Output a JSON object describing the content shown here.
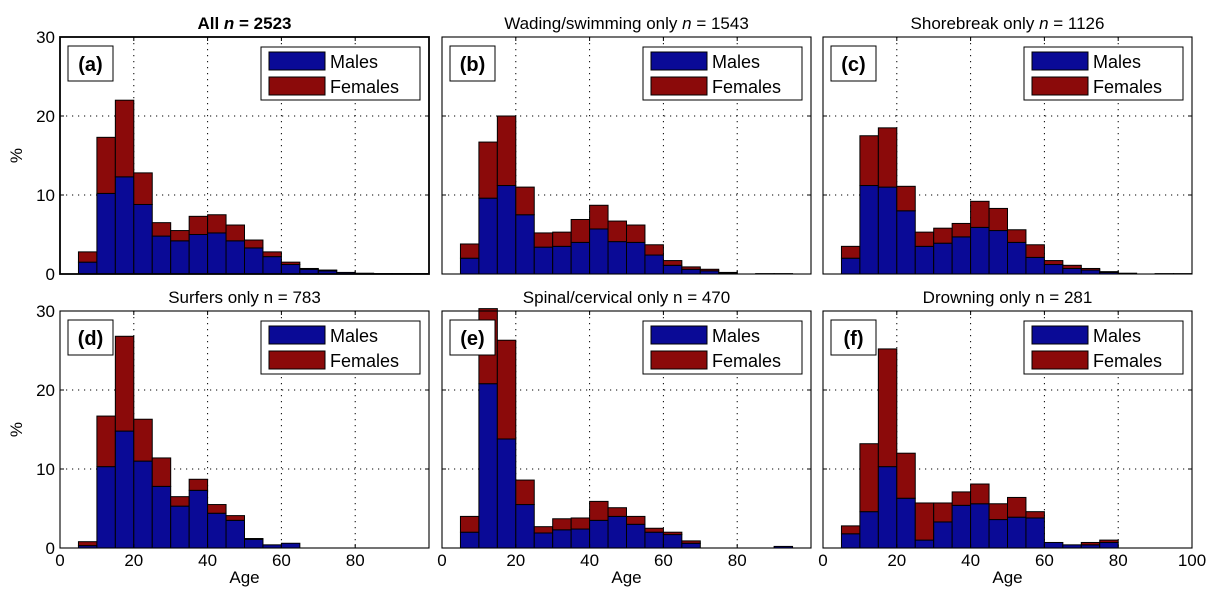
{
  "colors": {
    "males": "#0a0a96",
    "females": "#8b0a0a"
  },
  "legend": {
    "males": "Males",
    "females": "Females"
  },
  "chart_data": [
    {
      "type": "bar",
      "panel_label": "(a)",
      "title_parts": [
        {
          "text": "All ",
          "bold": true
        },
        {
          "text": "n",
          "bold": true,
          "italic": true
        },
        {
          "text": " = 2523",
          "bold": true
        }
      ],
      "xlabel": "",
      "ylabel": "%",
      "xlim": [
        0,
        100
      ],
      "ylim": [
        0,
        30
      ],
      "yticks": [
        "0",
        "10",
        "20",
        "30"
      ],
      "xticks": [],
      "bin_edges": [
        5,
        10,
        15,
        20,
        25,
        30,
        35,
        40,
        45,
        50,
        55,
        60,
        65,
        70,
        75,
        80,
        85,
        90,
        95,
        100
      ],
      "series": [
        {
          "name": "Males",
          "values": [
            1.5,
            10.2,
            12.3,
            8.8,
            4.8,
            4.2,
            5.0,
            5.2,
            4.2,
            3.3,
            2.2,
            1.2,
            0.6,
            0.4,
            0.2,
            0.1,
            0.05,
            0.05,
            0.05
          ]
        },
        {
          "name": "Females",
          "values": [
            1.3,
            7.1,
            9.7,
            4.0,
            1.7,
            1.3,
            2.3,
            2.3,
            2.0,
            1.0,
            0.6,
            0.3,
            0.1,
            0.1,
            0.0,
            0.0,
            0.0,
            0.0,
            0.0
          ]
        }
      ]
    },
    {
      "type": "bar",
      "panel_label": "(b)",
      "title_parts": [
        {
          "text": "Wading/swimming only "
        },
        {
          "text": "n",
          "italic": true
        },
        {
          "text": " = 1543"
        }
      ],
      "xlabel": "",
      "ylabel": "",
      "xlim": [
        0,
        100
      ],
      "ylim": [
        0,
        30
      ],
      "yticks": [],
      "xticks": [],
      "bin_edges": [
        5,
        10,
        15,
        20,
        25,
        30,
        35,
        40,
        45,
        50,
        55,
        60,
        65,
        70,
        75,
        80,
        85,
        90,
        95,
        100
      ],
      "series": [
        {
          "name": "Males",
          "values": [
            2.0,
            9.6,
            11.2,
            7.5,
            3.4,
            3.5,
            4.0,
            5.7,
            4.1,
            4.0,
            2.4,
            1.1,
            0.6,
            0.4,
            0.1,
            0.0,
            0.05,
            0.05,
            0.0
          ]
        },
        {
          "name": "Females",
          "values": [
            1.8,
            7.1,
            8.8,
            3.5,
            1.8,
            1.8,
            2.9,
            3.0,
            2.6,
            2.2,
            1.3,
            0.6,
            0.3,
            0.2,
            0.1,
            0.0,
            0.0,
            0.0,
            0.0
          ]
        }
      ]
    },
    {
      "type": "bar",
      "panel_label": "(c)",
      "title_parts": [
        {
          "text": "Shorebreak only "
        },
        {
          "text": "n",
          "italic": true
        },
        {
          "text": " = 1126"
        }
      ],
      "xlabel": "",
      "ylabel": "",
      "xlim": [
        0,
        100
      ],
      "ylim": [
        0,
        30
      ],
      "yticks": [],
      "xticks": [],
      "bin_edges": [
        5,
        10,
        15,
        20,
        25,
        30,
        35,
        40,
        45,
        50,
        55,
        60,
        65,
        70,
        75,
        80,
        85,
        90,
        95,
        100
      ],
      "series": [
        {
          "name": "Males",
          "values": [
            2.0,
            11.2,
            11.0,
            8.0,
            3.5,
            3.9,
            4.7,
            5.9,
            5.5,
            4.0,
            2.1,
            1.2,
            0.7,
            0.5,
            0.2,
            0.1,
            0.0,
            0.05,
            0.05
          ]
        },
        {
          "name": "Females",
          "values": [
            1.5,
            6.3,
            7.5,
            3.1,
            1.8,
            1.9,
            1.7,
            3.3,
            2.8,
            1.6,
            1.6,
            0.5,
            0.4,
            0.2,
            0.1,
            0.0,
            0.0,
            0.0,
            0.0
          ]
        }
      ]
    },
    {
      "type": "bar",
      "panel_label": "(d)",
      "title_parts": [
        {
          "text": "Surfers only n = 783"
        }
      ],
      "xlabel": "Age",
      "ylabel": "%",
      "xlim": [
        0,
        100
      ],
      "ylim": [
        0,
        30
      ],
      "yticks": [
        "0",
        "10",
        "20",
        "30"
      ],
      "xticks": [
        "0",
        "20",
        "40",
        "60",
        "80"
      ],
      "bin_edges": [
        5,
        10,
        15,
        20,
        25,
        30,
        35,
        40,
        45,
        50,
        55,
        60,
        65,
        70,
        75,
        80,
        85,
        90,
        95,
        100
      ],
      "series": [
        {
          "name": "Males",
          "values": [
            0.3,
            10.3,
            14.8,
            11.0,
            7.8,
            5.3,
            7.3,
            4.4,
            3.5,
            1.1,
            0.4,
            0.6,
            0.0,
            0.0,
            0.0,
            0.0,
            0.0,
            0.0,
            0.0
          ]
        },
        {
          "name": "Females",
          "values": [
            0.5,
            6.4,
            12.0,
            5.3,
            3.6,
            1.2,
            1.4,
            1.1,
            0.6,
            0.1,
            0.0,
            0.0,
            0.0,
            0.0,
            0.0,
            0.0,
            0.0,
            0.0,
            0.0
          ]
        }
      ]
    },
    {
      "type": "bar",
      "panel_label": "(e)",
      "title_parts": [
        {
          "text": "Spinal/cervical only n = 470"
        }
      ],
      "xlabel": "Age",
      "ylabel": "",
      "xlim": [
        0,
        100
      ],
      "ylim": [
        0,
        30
      ],
      "yticks": [],
      "xticks": [
        "0",
        "20",
        "40",
        "60",
        "80"
      ],
      "bin_edges": [
        5,
        10,
        15,
        20,
        25,
        30,
        35,
        40,
        45,
        50,
        55,
        60,
        65,
        70,
        75,
        80,
        85,
        90,
        95,
        100
      ],
      "series": [
        {
          "name": "Males",
          "values": [
            2.0,
            20.8,
            13.8,
            5.5,
            1.9,
            2.3,
            2.4,
            3.5,
            4.0,
            3.0,
            2.0,
            1.7,
            0.6,
            0.0,
            0.0,
            0.0,
            0.0,
            0.2,
            0.0
          ]
        },
        {
          "name": "Females",
          "values": [
            2.0,
            9.5,
            12.5,
            3.1,
            0.8,
            1.4,
            1.4,
            2.4,
            1.1,
            1.0,
            0.5,
            0.3,
            0.3,
            0.0,
            0.0,
            0.0,
            0.0,
            0.0,
            0.0
          ]
        }
      ]
    },
    {
      "type": "bar",
      "panel_label": "(f)",
      "title_parts": [
        {
          "text": "Drowning only n = 281"
        }
      ],
      "xlabel": "Age",
      "ylabel": "",
      "xlim": [
        0,
        100
      ],
      "ylim": [
        0,
        30
      ],
      "yticks": [],
      "xticks": [
        "0",
        "20",
        "40",
        "60",
        "80",
        "100"
      ],
      "bin_edges": [
        5,
        10,
        15,
        20,
        25,
        30,
        35,
        40,
        45,
        50,
        55,
        60,
        65,
        70,
        75,
        80,
        85,
        90,
        95,
        100
      ],
      "series": [
        {
          "name": "Males",
          "values": [
            1.8,
            4.6,
            10.3,
            6.3,
            1.0,
            3.3,
            5.4,
            5.6,
            3.6,
            3.9,
            3.8,
            0.7,
            0.4,
            0.4,
            0.7,
            0.0,
            0.0,
            0.0,
            0.0
          ]
        },
        {
          "name": "Females",
          "values": [
            1.0,
            8.6,
            14.9,
            5.7,
            4.7,
            2.4,
            1.7,
            2.5,
            2.0,
            2.5,
            0.8,
            0.0,
            0.0,
            0.3,
            0.3,
            0.0,
            0.0,
            0.0,
            0.0
          ]
        }
      ]
    }
  ]
}
